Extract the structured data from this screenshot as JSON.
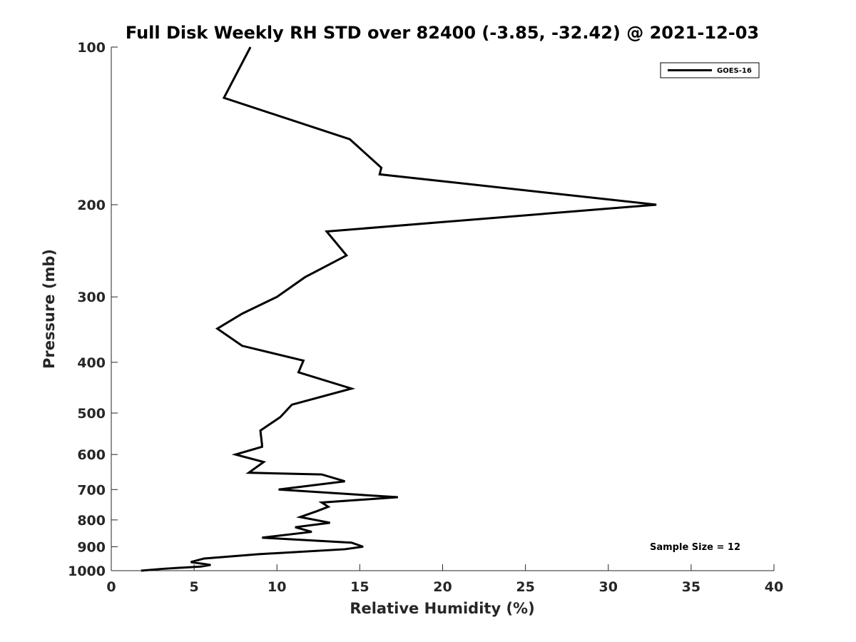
{
  "chart_data": {
    "type": "line",
    "title": "Full Disk Weekly RH STD over 82400 (-3.85, -32.42) @ 2021-12-03",
    "xlabel": "Relative Humidity (%)",
    "ylabel": "Pressure (mb)",
    "xlim": [
      0,
      40
    ],
    "ylim": [
      100,
      1000
    ],
    "y_scale": "log",
    "y_reversed": true,
    "x_ticks": [
      0,
      5,
      10,
      15,
      20,
      25,
      30,
      35,
      40
    ],
    "x_tick_labels": [
      "0",
      "5",
      "10",
      "15",
      "20",
      "25",
      "30",
      "35",
      "40"
    ],
    "y_ticks": [
      100,
      200,
      300,
      400,
      500,
      600,
      700,
      800,
      900,
      1000
    ],
    "y_tick_labels": [
      "100",
      "200",
      "300",
      "400",
      "500",
      "600",
      "700",
      "800",
      "900",
      "1000"
    ],
    "legend": {
      "location": "top-right",
      "entries": [
        "GOES-16"
      ]
    },
    "annotation": "Sample Size = 12",
    "series": [
      {
        "name": "GOES-16",
        "color": "#000000",
        "points": [
          [
            8.4,
            100
          ],
          [
            6.8,
            125
          ],
          [
            14.4,
            150
          ],
          [
            16.3,
            170
          ],
          [
            16.2,
            175
          ],
          [
            32.9,
            200
          ],
          [
            13.0,
            225
          ],
          [
            14.2,
            250
          ],
          [
            11.7,
            275
          ],
          [
            10.0,
            300
          ],
          [
            7.9,
            323
          ],
          [
            6.4,
            345
          ],
          [
            7.9,
            372
          ],
          [
            11.6,
            397
          ],
          [
            11.3,
            418
          ],
          [
            14.5,
            449
          ],
          [
            10.9,
            482
          ],
          [
            10.2,
            509
          ],
          [
            9.0,
            540
          ],
          [
            9.1,
            575
          ],
          [
            9.1,
            580
          ],
          [
            7.5,
            600
          ],
          [
            9.2,
            620
          ],
          [
            8.3,
            650
          ],
          [
            12.7,
            655
          ],
          [
            14.1,
            675
          ],
          [
            10.1,
            700
          ],
          [
            17.3,
            724
          ],
          [
            12.7,
            741
          ],
          [
            13.1,
            755
          ],
          [
            12.4,
            770
          ],
          [
            11.4,
            790
          ],
          [
            13.2,
            810
          ],
          [
            11.1,
            826
          ],
          [
            12.1,
            843
          ],
          [
            9.1,
            865
          ],
          [
            14.5,
            884
          ],
          [
            15.2,
            900
          ],
          [
            14.1,
            910
          ],
          [
            8.9,
            930
          ],
          [
            5.6,
            948
          ],
          [
            4.8,
            963
          ],
          [
            6.0,
            975
          ],
          [
            5.4,
            982
          ],
          [
            3.1,
            992
          ],
          [
            1.8,
            1000
          ]
        ]
      }
    ]
  }
}
